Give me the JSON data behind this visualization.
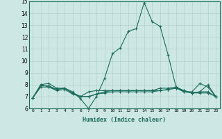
{
  "xlabel": "Humidex (Indice chaleur)",
  "x": [
    0,
    1,
    2,
    3,
    4,
    5,
    6,
    7,
    8,
    9,
    10,
    11,
    12,
    13,
    14,
    15,
    16,
    17,
    18,
    19,
    20,
    21,
    22,
    23
  ],
  "series": [
    [
      6.9,
      8.0,
      8.1,
      7.7,
      7.7,
      7.4,
      6.8,
      6.0,
      7.0,
      8.5,
      10.6,
      11.1,
      12.5,
      12.7,
      14.9,
      13.3,
      12.9,
      10.5,
      7.8,
      7.4,
      7.4,
      8.1,
      7.8,
      7.0
    ],
    [
      6.9,
      8.0,
      7.8,
      7.6,
      7.7,
      7.3,
      7.0,
      7.4,
      7.5,
      7.5,
      7.5,
      7.5,
      7.5,
      7.5,
      7.5,
      7.5,
      7.7,
      7.7,
      7.8,
      7.5,
      7.3,
      7.4,
      8.0,
      7.0
    ],
    [
      6.9,
      7.8,
      7.8,
      7.5,
      7.6,
      7.2,
      7.0,
      7.0,
      7.2,
      7.3,
      7.4,
      7.4,
      7.4,
      7.4,
      7.4,
      7.4,
      7.5,
      7.6,
      7.7,
      7.4,
      7.3,
      7.3,
      7.3,
      7.0
    ],
    [
      6.9,
      7.9,
      7.9,
      7.6,
      7.7,
      7.3,
      7.0,
      7.0,
      7.2,
      7.4,
      7.5,
      7.5,
      7.5,
      7.5,
      7.5,
      7.5,
      7.5,
      7.6,
      7.7,
      7.5,
      7.3,
      7.4,
      7.4,
      7.0
    ]
  ],
  "bg_color": "#cde8e4",
  "grid_color": "#b8d4d0",
  "line_color": "#1a6b5a",
  "ylim": [
    6,
    15
  ],
  "yticks": [
    6,
    7,
    8,
    9,
    10,
    11,
    12,
    13,
    14,
    15
  ],
  "xticks": [
    0,
    1,
    2,
    3,
    4,
    5,
    6,
    7,
    8,
    9,
    10,
    11,
    12,
    13,
    14,
    15,
    16,
    17,
    18,
    19,
    20,
    21,
    22,
    23
  ]
}
